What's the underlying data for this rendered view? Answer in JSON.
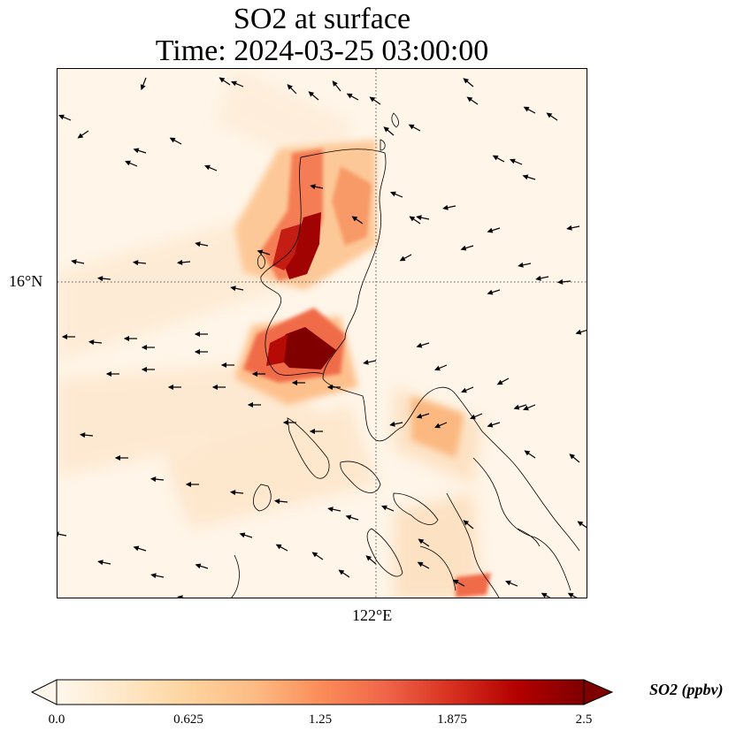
{
  "title": {
    "line1": "SO2 at surface",
    "line2": "Time: 2024-03-25 03:00:00"
  },
  "axes": {
    "lat_tick": "16°N",
    "lon_tick": "122°E"
  },
  "colorbar": {
    "label": "SO2 (ppbv)",
    "ticks": [
      "0.0",
      "0.625",
      "1.25",
      "1.875",
      "2.5"
    ],
    "min": 0.0,
    "max": 2.5,
    "extend": "both",
    "colormap": "OrRd",
    "colors": [
      "#fff7ec",
      "#fee8c8",
      "#fdd49e",
      "#fdbb84",
      "#fc8d59",
      "#ef6548",
      "#d7301f",
      "#b30000",
      "#7f0000"
    ]
  },
  "map": {
    "background": "#fff5e8",
    "gridline_style": "dotted",
    "coastline_color": "#000000",
    "overlay": "wind vectors"
  }
}
